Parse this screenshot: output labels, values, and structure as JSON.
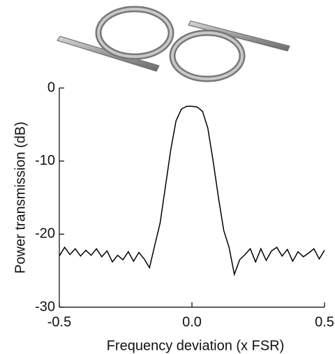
{
  "chart_data": {
    "type": "line",
    "xlabel": "Frequency deviation (x FSR)",
    "ylabel": "Power transmission (dB)",
    "xlim": [
      -0.5,
      0.5
    ],
    "ylim": [
      -30,
      0
    ],
    "xticks": [
      -0.5,
      {
        "value": 0,
        "label": "0.0"
      },
      0.5
    ],
    "yticks": [
      0,
      -10,
      -20,
      -30
    ],
    "color": "#000000",
    "x": [
      -0.5,
      -0.48,
      -0.46,
      -0.44,
      -0.42,
      -0.4,
      -0.38,
      -0.36,
      -0.34,
      -0.32,
      -0.3,
      -0.28,
      -0.26,
      -0.24,
      -0.22,
      -0.2,
      -0.18,
      -0.16,
      -0.14,
      -0.12,
      -0.1,
      -0.08,
      -0.06,
      -0.04,
      -0.02,
      0,
      0.02,
      0.04,
      0.06,
      0.08,
      0.1,
      0.12,
      0.14,
      0.16,
      0.18,
      0.2,
      0.22,
      0.24,
      0.26,
      0.28,
      0.3,
      0.32,
      0.34,
      0.36,
      0.38,
      0.4,
      0.42,
      0.44,
      0.46,
      0.48,
      0.5
    ],
    "values": [
      -23.0,
      -21.8,
      -22.8,
      -22.0,
      -23.0,
      -22.2,
      -22.9,
      -22.0,
      -23.1,
      -22.3,
      -23.8,
      -22.9,
      -23.5,
      -22.4,
      -23.7,
      -22.5,
      -23.4,
      -24.6,
      -21.5,
      -18.5,
      -13.5,
      -8.5,
      -4.5,
      -2.9,
      -2.5,
      -2.5,
      -2.6,
      -3.2,
      -5.5,
      -10.0,
      -15.0,
      -19.5,
      -21.8,
      -25.5,
      -23.5,
      -22.8,
      -22.0,
      -23.8,
      -22.0,
      -23.6,
      -22.3,
      -21.8,
      -23.0,
      -22.1,
      -23.7,
      -22.4,
      -23.1,
      -22.6,
      -22.0,
      -23.4,
      -22.2
    ]
  }
}
